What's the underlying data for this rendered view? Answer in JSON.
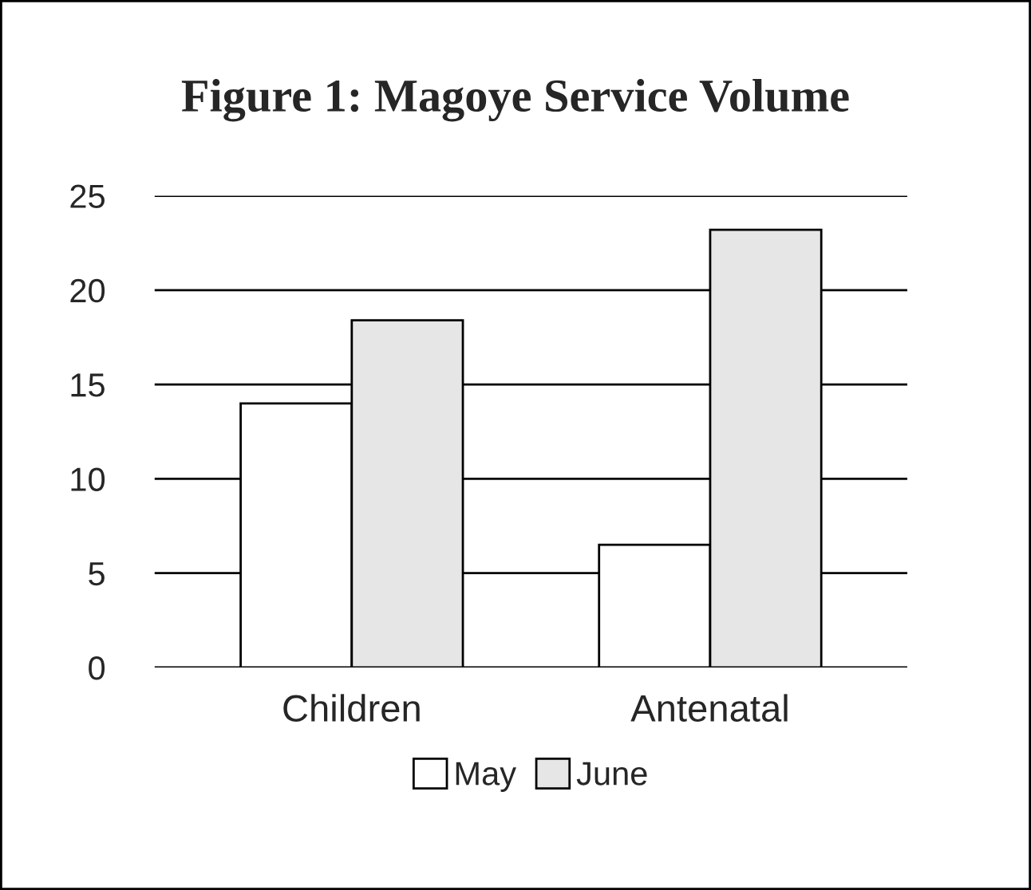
{
  "chart_data": {
    "type": "bar",
    "title": "Figure 1: Magoye Service Volume",
    "categories": [
      "Children",
      "Antenatal"
    ],
    "series": [
      {
        "name": "May",
        "color": "#ffffff",
        "values": [
          14.0,
          6.5
        ]
      },
      {
        "name": "June",
        "color": "#e6e6e6",
        "values": [
          18.4,
          23.2
        ]
      }
    ],
    "ylim": [
      0,
      25
    ],
    "yticks": [
      0,
      5,
      10,
      15,
      20,
      25
    ],
    "grid": "y",
    "legend": "bottom"
  }
}
